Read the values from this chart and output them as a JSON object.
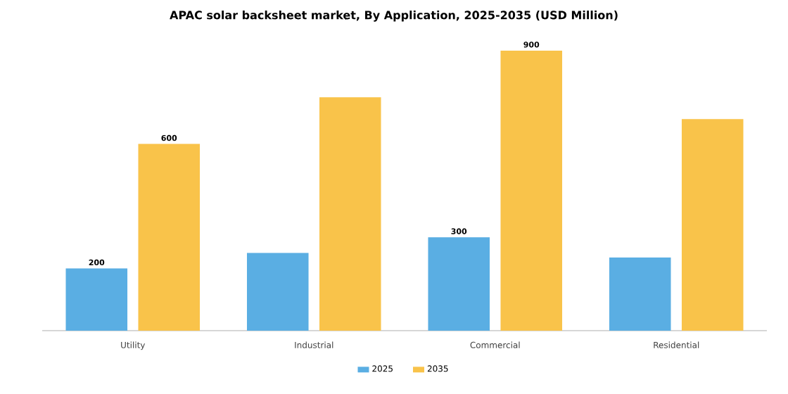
{
  "chart_data": {
    "type": "bar",
    "title": "APAC solar backsheet market, By Application, 2025-2035 (USD Million)",
    "categories": [
      "Utility",
      "Industrial",
      "Commercial",
      "Residential"
    ],
    "series": [
      {
        "name": "2025",
        "color": "#5aaee3",
        "values": [
          200,
          250,
          300,
          235
        ],
        "value_labels": [
          "200",
          null,
          "300",
          null
        ]
      },
      {
        "name": "2035",
        "color": "#f9c34a",
        "values": [
          600,
          750,
          900,
          680
        ],
        "value_labels": [
          "600",
          null,
          "900",
          null
        ]
      }
    ],
    "legend": "bottom"
  }
}
